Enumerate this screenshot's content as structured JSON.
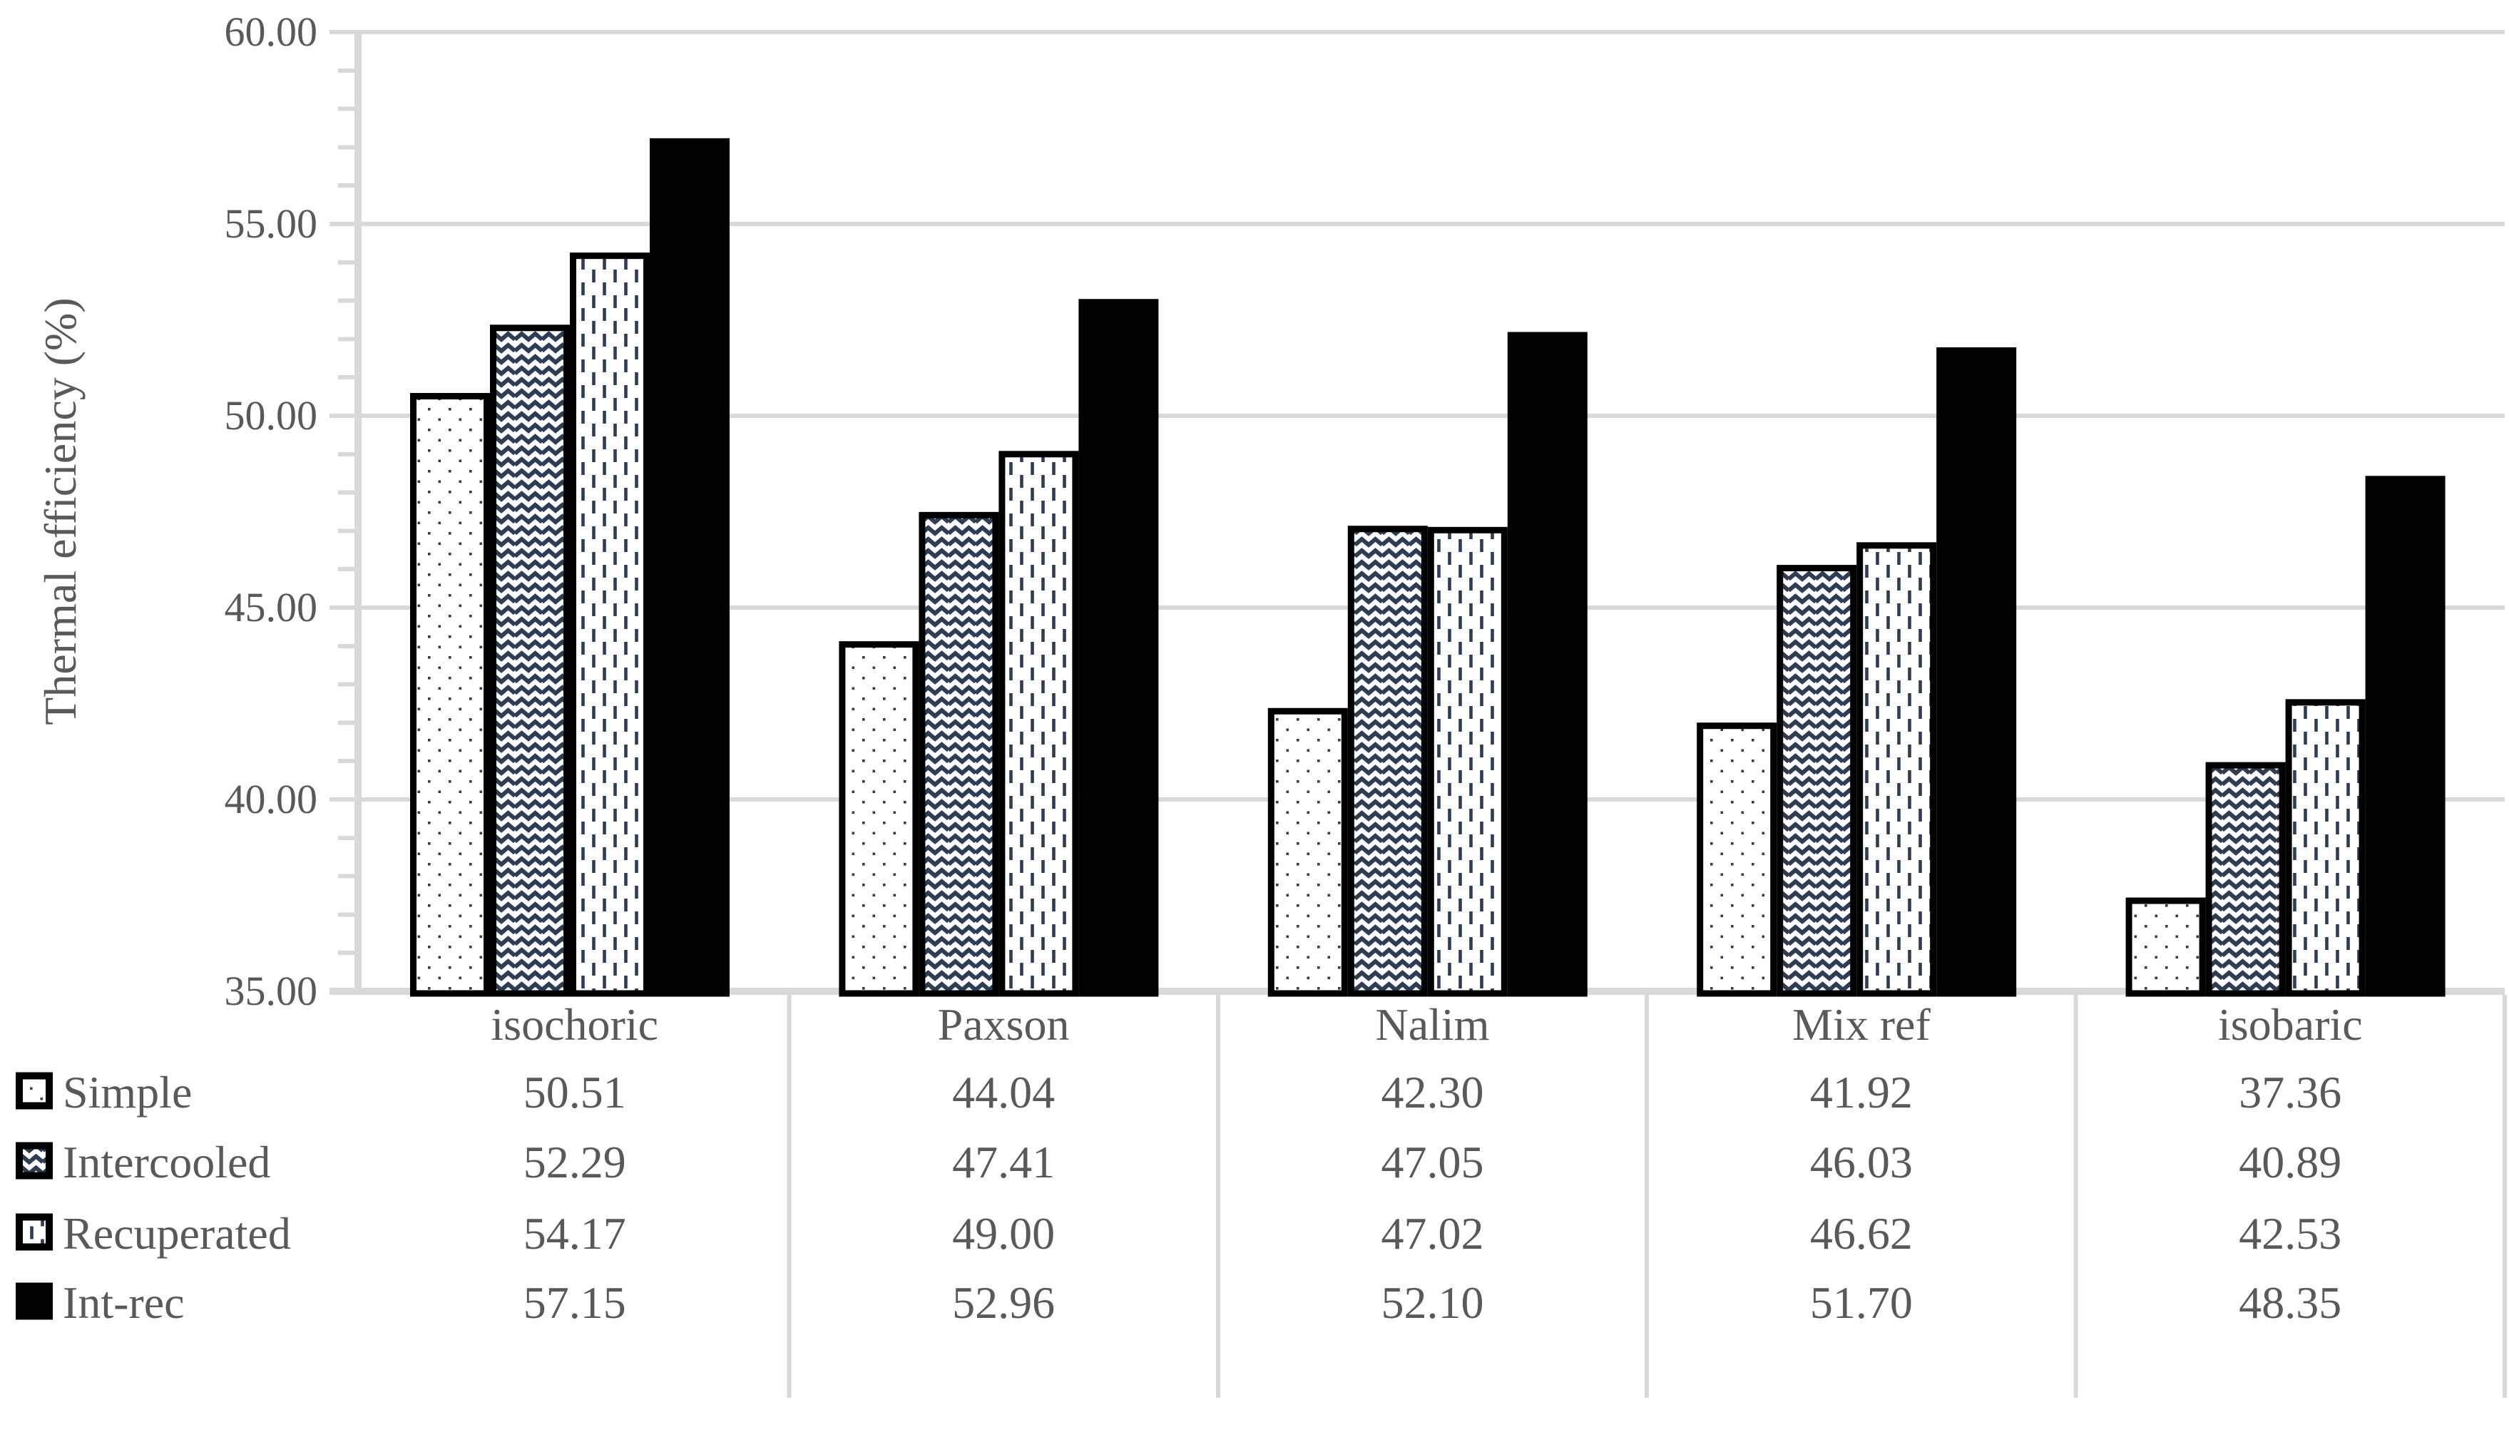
{
  "chart_data": {
    "type": "bar",
    "title": "",
    "ylabel": "Thermal efficiency (%)",
    "ylim": [
      35,
      60
    ],
    "ytick_step": 5,
    "minor_tick_step": 1,
    "ytick_labels_top_to_bottom": [
      "60.00",
      "55.00",
      "50.00",
      "45.00",
      "40.00",
      "35.00"
    ],
    "grid": true,
    "legend_position": "left-of-data-table-rows",
    "categories": [
      "isochoric",
      "Paxson",
      "Nalim",
      "Mix ref",
      "isobaric"
    ],
    "series": [
      {
        "name": "Simple",
        "pattern": "dots",
        "values": [
          50.51,
          44.04,
          42.3,
          41.92,
          37.36
        ],
        "display": [
          "50.51",
          "44.04",
          "42.30",
          "41.92",
          "37.36"
        ]
      },
      {
        "name": "Intercooled",
        "pattern": "wave",
        "values": [
          52.29,
          47.41,
          47.05,
          46.03,
          40.89
        ],
        "display": [
          "52.29",
          "47.41",
          "47.05",
          "46.03",
          "40.89"
        ]
      },
      {
        "name": "Recuperated",
        "pattern": "vdash",
        "values": [
          54.17,
          49.0,
          47.02,
          46.62,
          42.53
        ],
        "display": [
          "54.17",
          "49.00",
          "47.02",
          "46.62",
          "42.53"
        ]
      },
      {
        "name": "Int-rec",
        "pattern": "solid",
        "values": [
          57.15,
          52.96,
          52.1,
          51.7,
          48.35
        ],
        "display": [
          "57.15",
          "52.96",
          "52.10",
          "51.70",
          "48.35"
        ]
      }
    ],
    "colors": {
      "pattern_foreground": "#2e3d54",
      "pattern_background": "#ffffff",
      "bar_border": "#000000",
      "solid_bar": "#000000",
      "gridline": "#d9d9d9",
      "text": "#595959"
    }
  }
}
